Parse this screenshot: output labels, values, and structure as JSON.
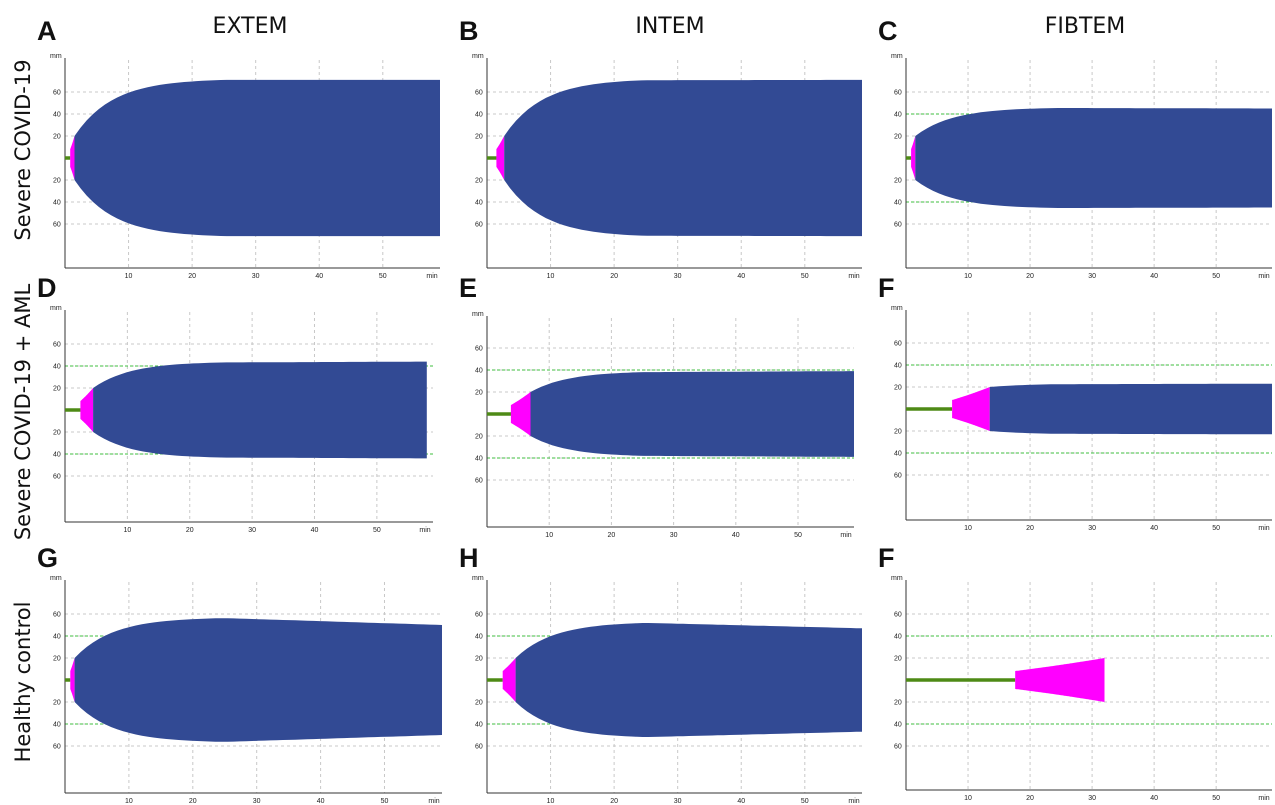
{
  "figure": {
    "columns": [
      "EXTEM",
      "INTEM",
      "FIBTEM"
    ],
    "rows": [
      "Severe COVID-19",
      "Severe COVID-19 + AML",
      "Healthy control"
    ],
    "units": {
      "y": "mm",
      "x": "min"
    },
    "colors": {
      "clot": "#324a94",
      "ct_phase": "#ff00ff",
      "baseline": "#4e8a16",
      "grid": "#c8c8c8",
      "ref_line": "#3fbf3f",
      "axis": "#333333"
    }
  },
  "chart_data": [
    {
      "type": "area",
      "panel": "A",
      "row": "Severe COVID-19",
      "column": "EXTEM",
      "ct_min": 1.5,
      "end_min": 59,
      "max_amplitude_mm": 72,
      "final_amplitude_mm": 71,
      "ref_lines_mm": [],
      "xticks": [
        10,
        20,
        30,
        40,
        50
      ],
      "yticks_top": [
        60,
        40,
        20
      ],
      "yticks_bottom": [
        20,
        40,
        60
      ],
      "xlim": [
        0,
        59
      ],
      "ylim": [
        -80,
        80
      ],
      "grid": true
    },
    {
      "type": "area",
      "panel": "B",
      "row": "Severe COVID-19",
      "column": "INTEM",
      "ct_min": 2.7,
      "end_min": 59,
      "max_amplitude_mm": 72,
      "final_amplitude_mm": 71,
      "ref_lines_mm": [],
      "xticks": [
        10,
        20,
        30,
        40,
        50
      ],
      "yticks_top": [
        60,
        40,
        20
      ],
      "yticks_bottom": [
        20,
        40,
        60
      ],
      "xlim": [
        0,
        59
      ],
      "ylim": [
        -80,
        80
      ],
      "grid": true
    },
    {
      "type": "area",
      "panel": "C",
      "row": "Severe COVID-19",
      "column": "FIBTEM",
      "ct_min": 1.5,
      "end_min": 59,
      "max_amplitude_mm": 46,
      "final_amplitude_mm": 45,
      "ref_lines_mm": [
        40
      ],
      "xticks": [
        10,
        20,
        30,
        40,
        50
      ],
      "yticks_top": [
        60,
        40,
        20
      ],
      "yticks_bottom": [
        20,
        40,
        60
      ],
      "xlim": [
        0,
        59
      ],
      "ylim": [
        -80,
        80
      ],
      "grid": true
    },
    {
      "type": "area",
      "panel": "D",
      "row": "Severe COVID-19 + AML",
      "column": "EXTEM",
      "ct_min": 4.5,
      "end_min": 58,
      "max_amplitude_mm": 44,
      "final_amplitude_mm": 44,
      "ref_lines_mm": [
        40
      ],
      "xticks": [
        10,
        20,
        30,
        40,
        50
      ],
      "yticks_top": [
        60,
        40,
        20
      ],
      "yticks_bottom": [
        20,
        40,
        60
      ],
      "xlim": [
        0,
        59
      ],
      "ylim": [
        -80,
        80
      ],
      "grid": true
    },
    {
      "type": "area",
      "panel": "E",
      "row": "Severe COVID-19 + AML",
      "column": "INTEM",
      "ct_min": 7,
      "end_min": 59,
      "max_amplitude_mm": 39,
      "final_amplitude_mm": 39,
      "ref_lines_mm": [
        40
      ],
      "xticks": [
        10,
        20,
        30,
        40,
        50
      ],
      "yticks_top": [
        60,
        40,
        20
      ],
      "yticks_bottom": [
        20,
        40,
        60
      ],
      "xlim": [
        0,
        59
      ],
      "ylim": [
        -80,
        80
      ],
      "grid": true
    },
    {
      "type": "area",
      "panel": "F",
      "row": "Severe COVID-19 + AML",
      "column": "FIBTEM",
      "ct_min": 13.5,
      "end_min": 59,
      "max_amplitude_mm": 23,
      "final_amplitude_mm": 23,
      "ref_lines_mm": [
        40
      ],
      "xticks": [
        10,
        20,
        30,
        40,
        50
      ],
      "yticks_top": [
        60,
        40,
        20
      ],
      "yticks_bottom": [
        20,
        40,
        60
      ],
      "xlim": [
        0,
        59
      ],
      "ylim": [
        -80,
        80
      ],
      "grid": true
    },
    {
      "type": "area",
      "panel": "G",
      "row": "Healthy control",
      "column": "EXTEM",
      "ct_min": 1.5,
      "end_min": 59,
      "max_amplitude_mm": 57,
      "final_amplitude_mm": 50,
      "ref_lines_mm": [
        40
      ],
      "xticks": [
        10,
        20,
        30,
        40,
        50
      ],
      "yticks_top": [
        60,
        40,
        20
      ],
      "yticks_bottom": [
        20,
        40,
        60
      ],
      "xlim": [
        0,
        59
      ],
      "ylim": [
        -80,
        80
      ],
      "grid": true
    },
    {
      "type": "area",
      "panel": "H",
      "row": "Healthy control",
      "column": "INTEM",
      "ct_min": 4.5,
      "end_min": 59,
      "max_amplitude_mm": 53,
      "final_amplitude_mm": 47,
      "ref_lines_mm": [
        40
      ],
      "xticks": [
        10,
        20,
        30,
        40,
        50
      ],
      "yticks_top": [
        60,
        40,
        20
      ],
      "yticks_bottom": [
        20,
        40,
        60
      ],
      "xlim": [
        0,
        59
      ],
      "ylim": [
        -80,
        80
      ],
      "grid": true
    },
    {
      "type": "area",
      "panel": "F",
      "row": "Healthy control",
      "column": "FIBTEM",
      "ct_min": 32,
      "end_min": 32,
      "max_amplitude_mm": 7,
      "final_amplitude_mm": 7,
      "ref_lines_mm": [
        40
      ],
      "xticks": [
        10,
        20,
        30,
        40,
        50
      ],
      "yticks_top": [
        60,
        40,
        20
      ],
      "yticks_bottom": [
        20,
        40,
        60
      ],
      "xlim": [
        0,
        59
      ],
      "ylim": [
        -80,
        80
      ],
      "grid": true
    }
  ]
}
